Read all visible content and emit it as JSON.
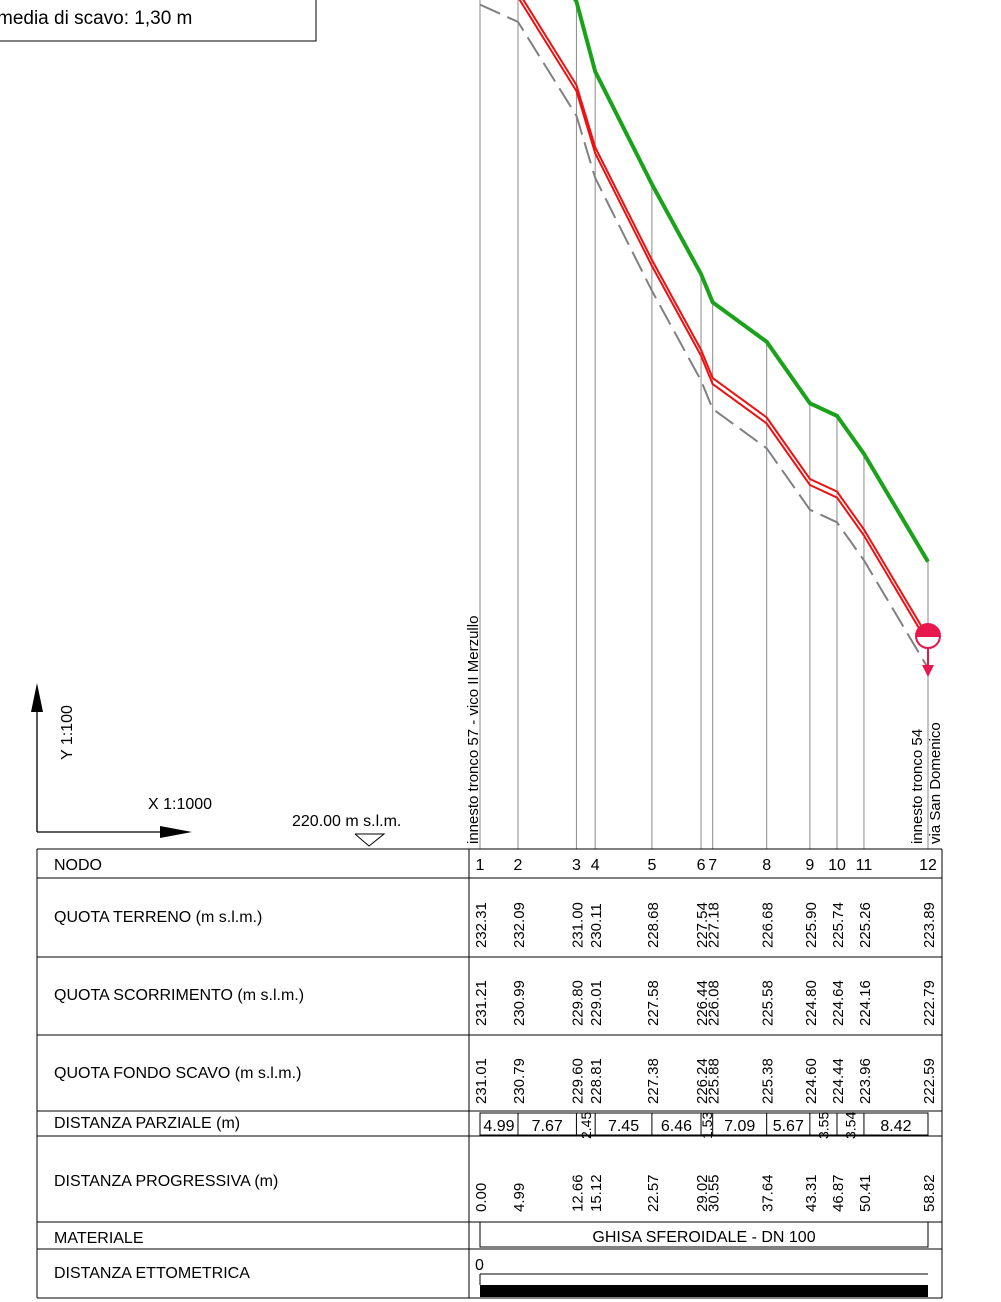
{
  "title_box": {
    "text": "media di scavo: 1,30 m"
  },
  "scales": {
    "y": "Y 1:100",
    "x": "X 1:1000"
  },
  "datum": {
    "label": "220.00 m s.l.m."
  },
  "annotations": {
    "start": {
      "line1": "innesto tronco 57 - vico II Merzullo"
    },
    "end": {
      "line1": "innesto tronco 54",
      "line2": "via San Domenico"
    }
  },
  "table": {
    "row_labels": {
      "nodo": "NODO",
      "terreno": "QUOTA TERRENO (m s.l.m.)",
      "scorrimento": "QUOTA SCORRIMENTO (m s.l.m.)",
      "fondo": "QUOTA FONDO SCAVO (m s.l.m.)",
      "parziale": "DISTANZA PARZIALE (m)",
      "progressiva": "DISTANZA PROGRESSIVA (m)",
      "materiale": "MATERIALE",
      "ettometrica": "DISTANZA ETTOMETRICA"
    },
    "materiale_value": "GHISA SFEROIDALE - DN 100",
    "ettometrica_value": "0"
  },
  "colors": {
    "terrain": "#1aa31a",
    "pipe": "#ee1111",
    "excavation": "#808080",
    "manhole": "#e8174d",
    "line": "#000000",
    "grid": "#8a8a8a"
  },
  "chart_data": {
    "type": "line",
    "x_unit": "m",
    "y_unit": "m s.l.m.",
    "datum": 220.0,
    "nodes": [
      "1",
      "2",
      "3",
      "4",
      "5",
      "6",
      "7",
      "8",
      "9",
      "10",
      "11",
      "12"
    ],
    "x": [
      0.0,
      4.99,
      12.66,
      15.12,
      22.57,
      29.02,
      30.55,
      37.64,
      43.31,
      46.87,
      50.41,
      58.82
    ],
    "x_labels": [
      "0.00",
      "4.99",
      "12.66",
      "15.12",
      "22.57",
      "29.02",
      "30.55",
      "37.64",
      "43.31",
      "46.87",
      "50.41",
      "58.82"
    ],
    "partial_distances": [
      "4.99",
      "7.67",
      "2.45",
      "7.45",
      "6.46",
      "1.53",
      "7.09",
      "5.67",
      "3.55",
      "3.54",
      "8.42"
    ],
    "series": [
      {
        "key": "terreno",
        "values": [
          232.31,
          232.09,
          231.0,
          230.11,
          228.68,
          227.54,
          227.18,
          226.68,
          225.9,
          225.74,
          225.26,
          223.89
        ],
        "labels": [
          "232.31",
          "232.09",
          "231.00",
          "230.11",
          "228.68",
          "227.54",
          "227.18",
          "226.68",
          "225.90",
          "225.74",
          "225.26",
          "223.89"
        ]
      },
      {
        "key": "scorrimento",
        "values": [
          231.21,
          230.99,
          229.8,
          229.01,
          227.58,
          226.44,
          226.08,
          225.58,
          224.8,
          224.64,
          224.16,
          222.79
        ],
        "labels": [
          "231.21",
          "230.99",
          "229.80",
          "229.01",
          "227.58",
          "226.44",
          "226.08",
          "225.58",
          "224.80",
          "224.64",
          "224.16",
          "222.79"
        ]
      },
      {
        "key": "fondo",
        "values": [
          231.01,
          230.79,
          229.6,
          228.81,
          227.38,
          226.24,
          225.88,
          225.38,
          224.6,
          224.44,
          223.96,
          222.59
        ],
        "labels": [
          "231.01",
          "230.79",
          "229.60",
          "228.81",
          "227.38",
          "226.24",
          "225.88",
          "225.38",
          "224.60",
          "224.44",
          "223.96",
          "222.59"
        ]
      }
    ]
  }
}
